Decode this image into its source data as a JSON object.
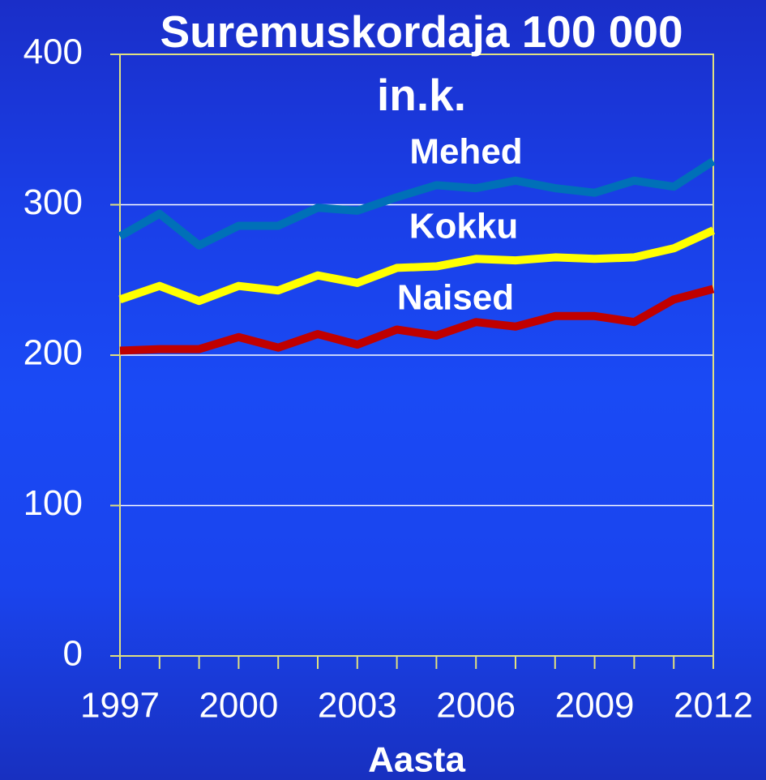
{
  "chart_data": {
    "type": "line",
    "title": "Suremuskordaja 100 000 in.k.",
    "x_label": "Aasta",
    "x": [
      1997,
      1998,
      1999,
      2000,
      2001,
      2002,
      2003,
      2004,
      2005,
      2006,
      2007,
      2008,
      2009,
      2010,
      2011,
      2012
    ],
    "series": [
      {
        "name": "Mehed",
        "color": "#0070b8",
        "values": [
          279,
          294,
          273,
          286,
          286,
          298,
          296,
          305,
          313,
          311,
          316,
          311,
          308,
          316,
          312,
          329
        ]
      },
      {
        "name": "Kokku",
        "color": "#ffff00",
        "values": [
          237,
          246,
          236,
          246,
          243,
          253,
          248,
          258,
          259,
          264,
          263,
          265,
          264,
          265,
          271,
          283
        ]
      },
      {
        "name": "Naised",
        "color": "#c00000",
        "values": [
          203,
          204,
          204,
          212,
          205,
          214,
          207,
          217,
          213,
          222,
          219,
          226,
          226,
          222,
          237,
          244
        ]
      }
    ],
    "xlim": [
      1997,
      2012
    ],
    "xticks": [
      1997,
      2000,
      2003,
      2006,
      2009,
      2012
    ],
    "ylim": [
      0,
      400
    ],
    "yticks": [
      0,
      100,
      200,
      300,
      400
    ],
    "grid": true
  }
}
